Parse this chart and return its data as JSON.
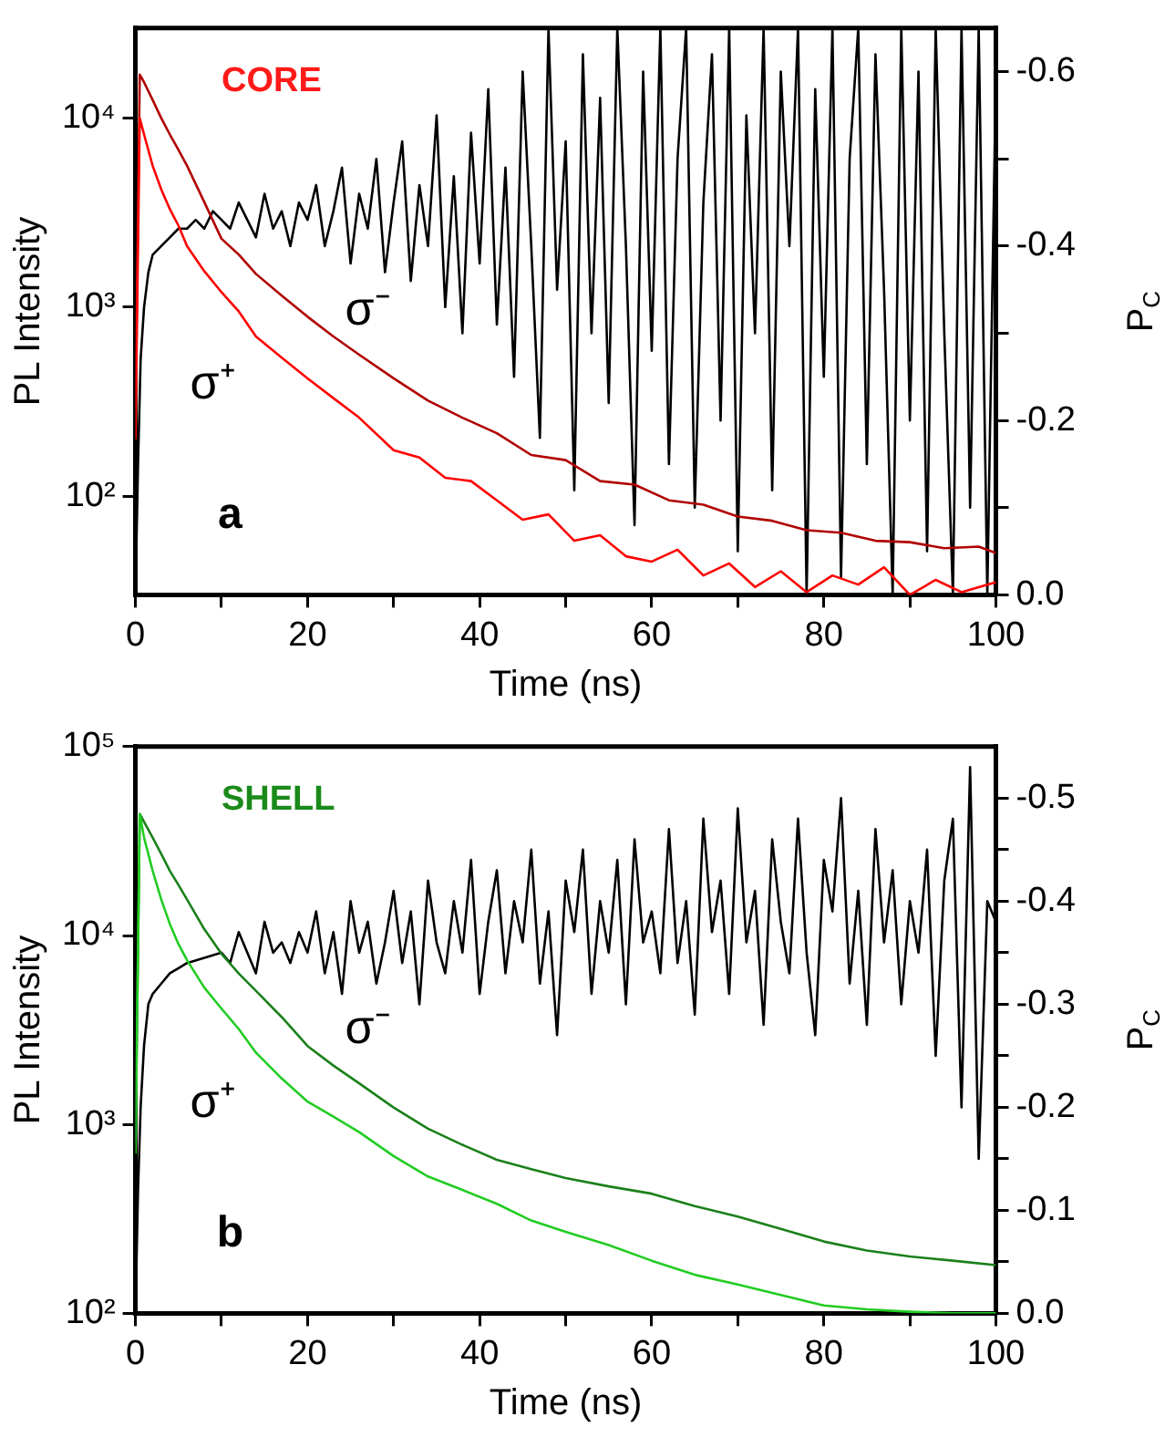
{
  "chart_data": [
    {
      "type": "line",
      "title": "CORE",
      "xlabel": "Time (ns)",
      "ylabel": "PL Intensity",
      "y2label": "P$_{C}$",
      "log": "y",
      "annotations": [
        "σ⁻",
        "σ⁺",
        "a"
      ],
      "xlim": [
        0,
        100
      ],
      "xticks": [
        0,
        {
          "value": 10,
          "label": null
        },
        20,
        {
          "value": 30,
          "label": null
        },
        40,
        {
          "value": 50,
          "label": null
        },
        60,
        {
          "value": 70,
          "label": null
        },
        80,
        {
          "value": 90,
          "label": null
        },
        100
      ],
      "ylim": [
        30,
        30000
      ],
      "yticks": [
        {
          "value": 100,
          "label": "10²"
        },
        {
          "value": 1000,
          "label": "10³"
        },
        {
          "value": 10000,
          "label": "10⁴"
        }
      ],
      "y2lim": [
        0,
        -0.65
      ],
      "y2ticks": [
        {
          "value": 0,
          "label": "0.0"
        },
        {
          "value": -0.1,
          "label": null
        },
        -0.2,
        {
          "value": -0.3,
          "label": null
        },
        -0.4,
        {
          "value": -0.5,
          "label": null
        },
        -0.6
      ],
      "series": [
        {
          "color": "#ff0000",
          "x": [
            0,
            0.5,
            1,
            2,
            3,
            4,
            5,
            6,
            8,
            10,
            12,
            14,
            17,
            20,
            23,
            26,
            30,
            33,
            36,
            39,
            42,
            45,
            48,
            51,
            54,
            57,
            60,
            63,
            66,
            69,
            72,
            75,
            78,
            81,
            84,
            87,
            90,
            93,
            96,
            100
          ],
          "values": [
            200,
            10000,
            8200,
            5600,
            4200,
            3300,
            2700,
            2100,
            1550,
            1200,
            950,
            700,
            540,
            420,
            330,
            260,
            175,
            160,
            125,
            120,
            95,
            75,
            80,
            58,
            62,
            48,
            45,
            52,
            38,
            44,
            33,
            40,
            31,
            38,
            34,
            42,
            30,
            36,
            31,
            35
          ]
        },
        {
          "color": "#b00000",
          "x": [
            0,
            0.5,
            1,
            2,
            3,
            4,
            5,
            6,
            8,
            10,
            12,
            14,
            17,
            20,
            23,
            26,
            30,
            34,
            38,
            42,
            46,
            50,
            54,
            58,
            62,
            66,
            70,
            74,
            78,
            82,
            86,
            90,
            94,
            98,
            100
          ],
          "values": [
            300,
            17000,
            15500,
            12500,
            10000,
            8200,
            6800,
            5600,
            3600,
            2300,
            1900,
            1500,
            1150,
            890,
            700,
            560,
            420,
            320,
            260,
            215,
            165,
            155,
            120,
            115,
            95,
            90,
            78,
            74,
            66,
            64,
            58,
            57,
            53,
            54,
            50
          ]
        },
        {
          "color": "#000000",
          "axis": "y2",
          "x": [
            0,
            0.3,
            0.6,
            1,
            1.5,
            2,
            3,
            4,
            5,
            6,
            7,
            8,
            9,
            10,
            11,
            12,
            13,
            14,
            15,
            16,
            17,
            18,
            19,
            20,
            21,
            22,
            23,
            24,
            25,
            26,
            27,
            28,
            29,
            30,
            31,
            32,
            33,
            34,
            35,
            36,
            37,
            38,
            39,
            40,
            41,
            42,
            43,
            44,
            45,
            46,
            47,
            48,
            49,
            50,
            51,
            52,
            53,
            54,
            55,
            56,
            57,
            58,
            59,
            60,
            61,
            62,
            63,
            64,
            65,
            66,
            67,
            68,
            69,
            70,
            71,
            72,
            73,
            74,
            75,
            76,
            77,
            78,
            79,
            80,
            81,
            82,
            83,
            84,
            85,
            86,
            87,
            88,
            89,
            90,
            91,
            92,
            93,
            94,
            95,
            96,
            97,
            98,
            99,
            100
          ],
          "values": [
            0,
            -0.15,
            -0.27,
            -0.33,
            -0.37,
            -0.39,
            -0.4,
            -0.41,
            -0.42,
            -0.42,
            -0.43,
            -0.42,
            -0.44,
            -0.43,
            -0.42,
            -0.45,
            -0.43,
            -0.41,
            -0.46,
            -0.42,
            -0.44,
            -0.4,
            -0.45,
            -0.43,
            -0.47,
            -0.4,
            -0.44,
            -0.49,
            -0.38,
            -0.46,
            -0.42,
            -0.5,
            -0.37,
            -0.45,
            -0.52,
            -0.36,
            -0.47,
            -0.4,
            -0.55,
            -0.33,
            -0.48,
            -0.3,
            -0.53,
            -0.38,
            -0.58,
            -0.31,
            -0.49,
            -0.25,
            -0.6,
            -0.4,
            -0.18,
            -0.65,
            -0.35,
            -0.52,
            -0.12,
            -0.62,
            -0.3,
            -0.57,
            -0.22,
            -0.65,
            -0.4,
            -0.08,
            -0.6,
            -0.28,
            -0.65,
            -0.15,
            -0.5,
            -0.65,
            -0.1,
            -0.45,
            -0.62,
            -0.2,
            -0.65,
            -0.05,
            -0.55,
            -0.3,
            -0.65,
            -0.12,
            -0.6,
            -0.4,
            -0.65,
            0,
            -0.58,
            -0.25,
            -0.65,
            -0.02,
            -0.5,
            -0.65,
            -0.15,
            -0.62,
            -0.35,
            0,
            -0.65,
            -0.2,
            -0.6,
            -0.05,
            -0.65,
            -0.3,
            0,
            -0.65,
            -0.1,
            -0.65,
            0,
            -0.6
          ]
        }
      ]
    },
    {
      "type": "line",
      "title": "SHELL",
      "xlabel": "Time (ns)",
      "ylabel": "PL Intensity",
      "y2label": "P$_{C}$",
      "log": "y",
      "annotations": [
        "σ⁻",
        "σ⁺",
        "b"
      ],
      "xlim": [
        0,
        100
      ],
      "xticks": [
        0,
        {
          "value": 10,
          "label": null
        },
        20,
        {
          "value": 30,
          "label": null
        },
        40,
        {
          "value": 50,
          "label": null
        },
        60,
        {
          "value": 70,
          "label": null
        },
        80,
        {
          "value": 90,
          "label": null
        },
        100
      ],
      "ylim": [
        100,
        100000
      ],
      "yticks": [
        {
          "value": 100,
          "label": "10²"
        },
        {
          "value": 1000,
          "label": "10³"
        },
        {
          "value": 10000,
          "label": "10⁴"
        },
        {
          "value": 100000,
          "label": "10⁵"
        }
      ],
      "y2lim": [
        0,
        -0.55
      ],
      "y2ticks": [
        {
          "value": 0,
          "label": "0.0"
        },
        {
          "value": -0.05,
          "label": null
        },
        -0.1,
        {
          "value": -0.15,
          "label": null
        },
        -0.2,
        {
          "value": -0.25,
          "label": null
        },
        -0.3,
        {
          "value": -0.35,
          "label": null
        },
        -0.4,
        {
          "value": -0.45,
          "label": null
        },
        -0.5
      ],
      "series": [
        {
          "color": "#22cc22",
          "x": [
            0,
            0.5,
            1,
            2,
            3,
            4,
            5,
            6,
            8,
            10,
            12,
            14,
            17,
            20,
            23,
            26,
            30,
            34,
            38,
            42,
            46,
            50,
            55,
            60,
            65,
            70,
            75,
            80,
            85,
            90,
            95,
            100
          ],
          "values": [
            700,
            44000,
            33000,
            22000,
            15500,
            11500,
            9000,
            7400,
            5300,
            4100,
            3200,
            2400,
            1750,
            1320,
            1100,
            910,
            680,
            530,
            450,
            380,
            310,
            270,
            230,
            190,
            160,
            142,
            125,
            110,
            105,
            102,
            100,
            100
          ]
        },
        {
          "color": "#1a801a",
          "x": [
            0,
            0.5,
            1,
            2,
            3,
            4,
            5,
            6,
            8,
            10,
            12,
            14,
            17,
            20,
            23,
            26,
            30,
            34,
            38,
            42,
            46,
            50,
            55,
            60,
            65,
            70,
            75,
            80,
            85,
            90,
            95,
            100
          ],
          "values": [
            800,
            44000,
            40000,
            33000,
            27000,
            22000,
            18500,
            15500,
            10800,
            8000,
            6300,
            5100,
            3700,
            2600,
            2050,
            1650,
            1230,
            950,
            780,
            650,
            580,
            520,
            470,
            430,
            370,
            325,
            280,
            240,
            215,
            200,
            190,
            180
          ]
        },
        {
          "color": "#000000",
          "axis": "y2",
          "x": [
            0,
            0.3,
            0.6,
            1,
            1.5,
            2,
            3,
            4,
            5,
            6,
            8,
            10,
            11,
            12,
            13,
            14,
            15,
            16,
            17,
            18,
            19,
            20,
            21,
            22,
            23,
            24,
            25,
            26,
            27,
            28,
            29,
            30,
            31,
            32,
            33,
            34,
            35,
            36,
            37,
            38,
            39,
            40,
            41,
            42,
            43,
            44,
            45,
            46,
            47,
            48,
            49,
            50,
            51,
            52,
            53,
            54,
            55,
            56,
            57,
            58,
            59,
            60,
            61,
            62,
            63,
            64,
            65,
            66,
            67,
            68,
            69,
            70,
            71,
            72,
            73,
            74,
            75,
            76,
            77,
            78,
            79,
            80,
            81,
            82,
            83,
            84,
            85,
            86,
            87,
            88,
            89,
            90,
            91,
            92,
            93,
            94,
            95,
            96,
            97,
            98,
            99,
            100
          ],
          "values": [
            0,
            -0.12,
            -0.2,
            -0.26,
            -0.3,
            -0.31,
            -0.32,
            -0.33,
            -0.335,
            -0.34,
            -0.345,
            -0.35,
            -0.34,
            -0.37,
            -0.35,
            -0.33,
            -0.38,
            -0.35,
            -0.36,
            -0.34,
            -0.37,
            -0.35,
            -0.39,
            -0.33,
            -0.37,
            -0.31,
            -0.4,
            -0.35,
            -0.38,
            -0.32,
            -0.36,
            -0.41,
            -0.34,
            -0.39,
            -0.3,
            -0.42,
            -0.36,
            -0.33,
            -0.4,
            -0.35,
            -0.44,
            -0.31,
            -0.38,
            -0.43,
            -0.33,
            -0.4,
            -0.36,
            -0.45,
            -0.32,
            -0.39,
            -0.27,
            -0.42,
            -0.37,
            -0.45,
            -0.31,
            -0.4,
            -0.35,
            -0.44,
            -0.3,
            -0.46,
            -0.36,
            -0.39,
            -0.33,
            -0.47,
            -0.34,
            -0.4,
            -0.29,
            -0.48,
            -0.37,
            -0.42,
            -0.31,
            -0.49,
            -0.36,
            -0.41,
            -0.28,
            -0.46,
            -0.38,
            -0.33,
            -0.48,
            -0.35,
            -0.27,
            -0.44,
            -0.39,
            -0.5,
            -0.32,
            -0.41,
            -0.28,
            -0.47,
            -0.36,
            -0.43,
            -0.3,
            -0.4,
            -0.35,
            -0.45,
            -0.25,
            -0.42,
            -0.48,
            -0.2,
            -0.53,
            -0.15,
            -0.4,
            -0.38
          ]
        }
      ]
    }
  ]
}
